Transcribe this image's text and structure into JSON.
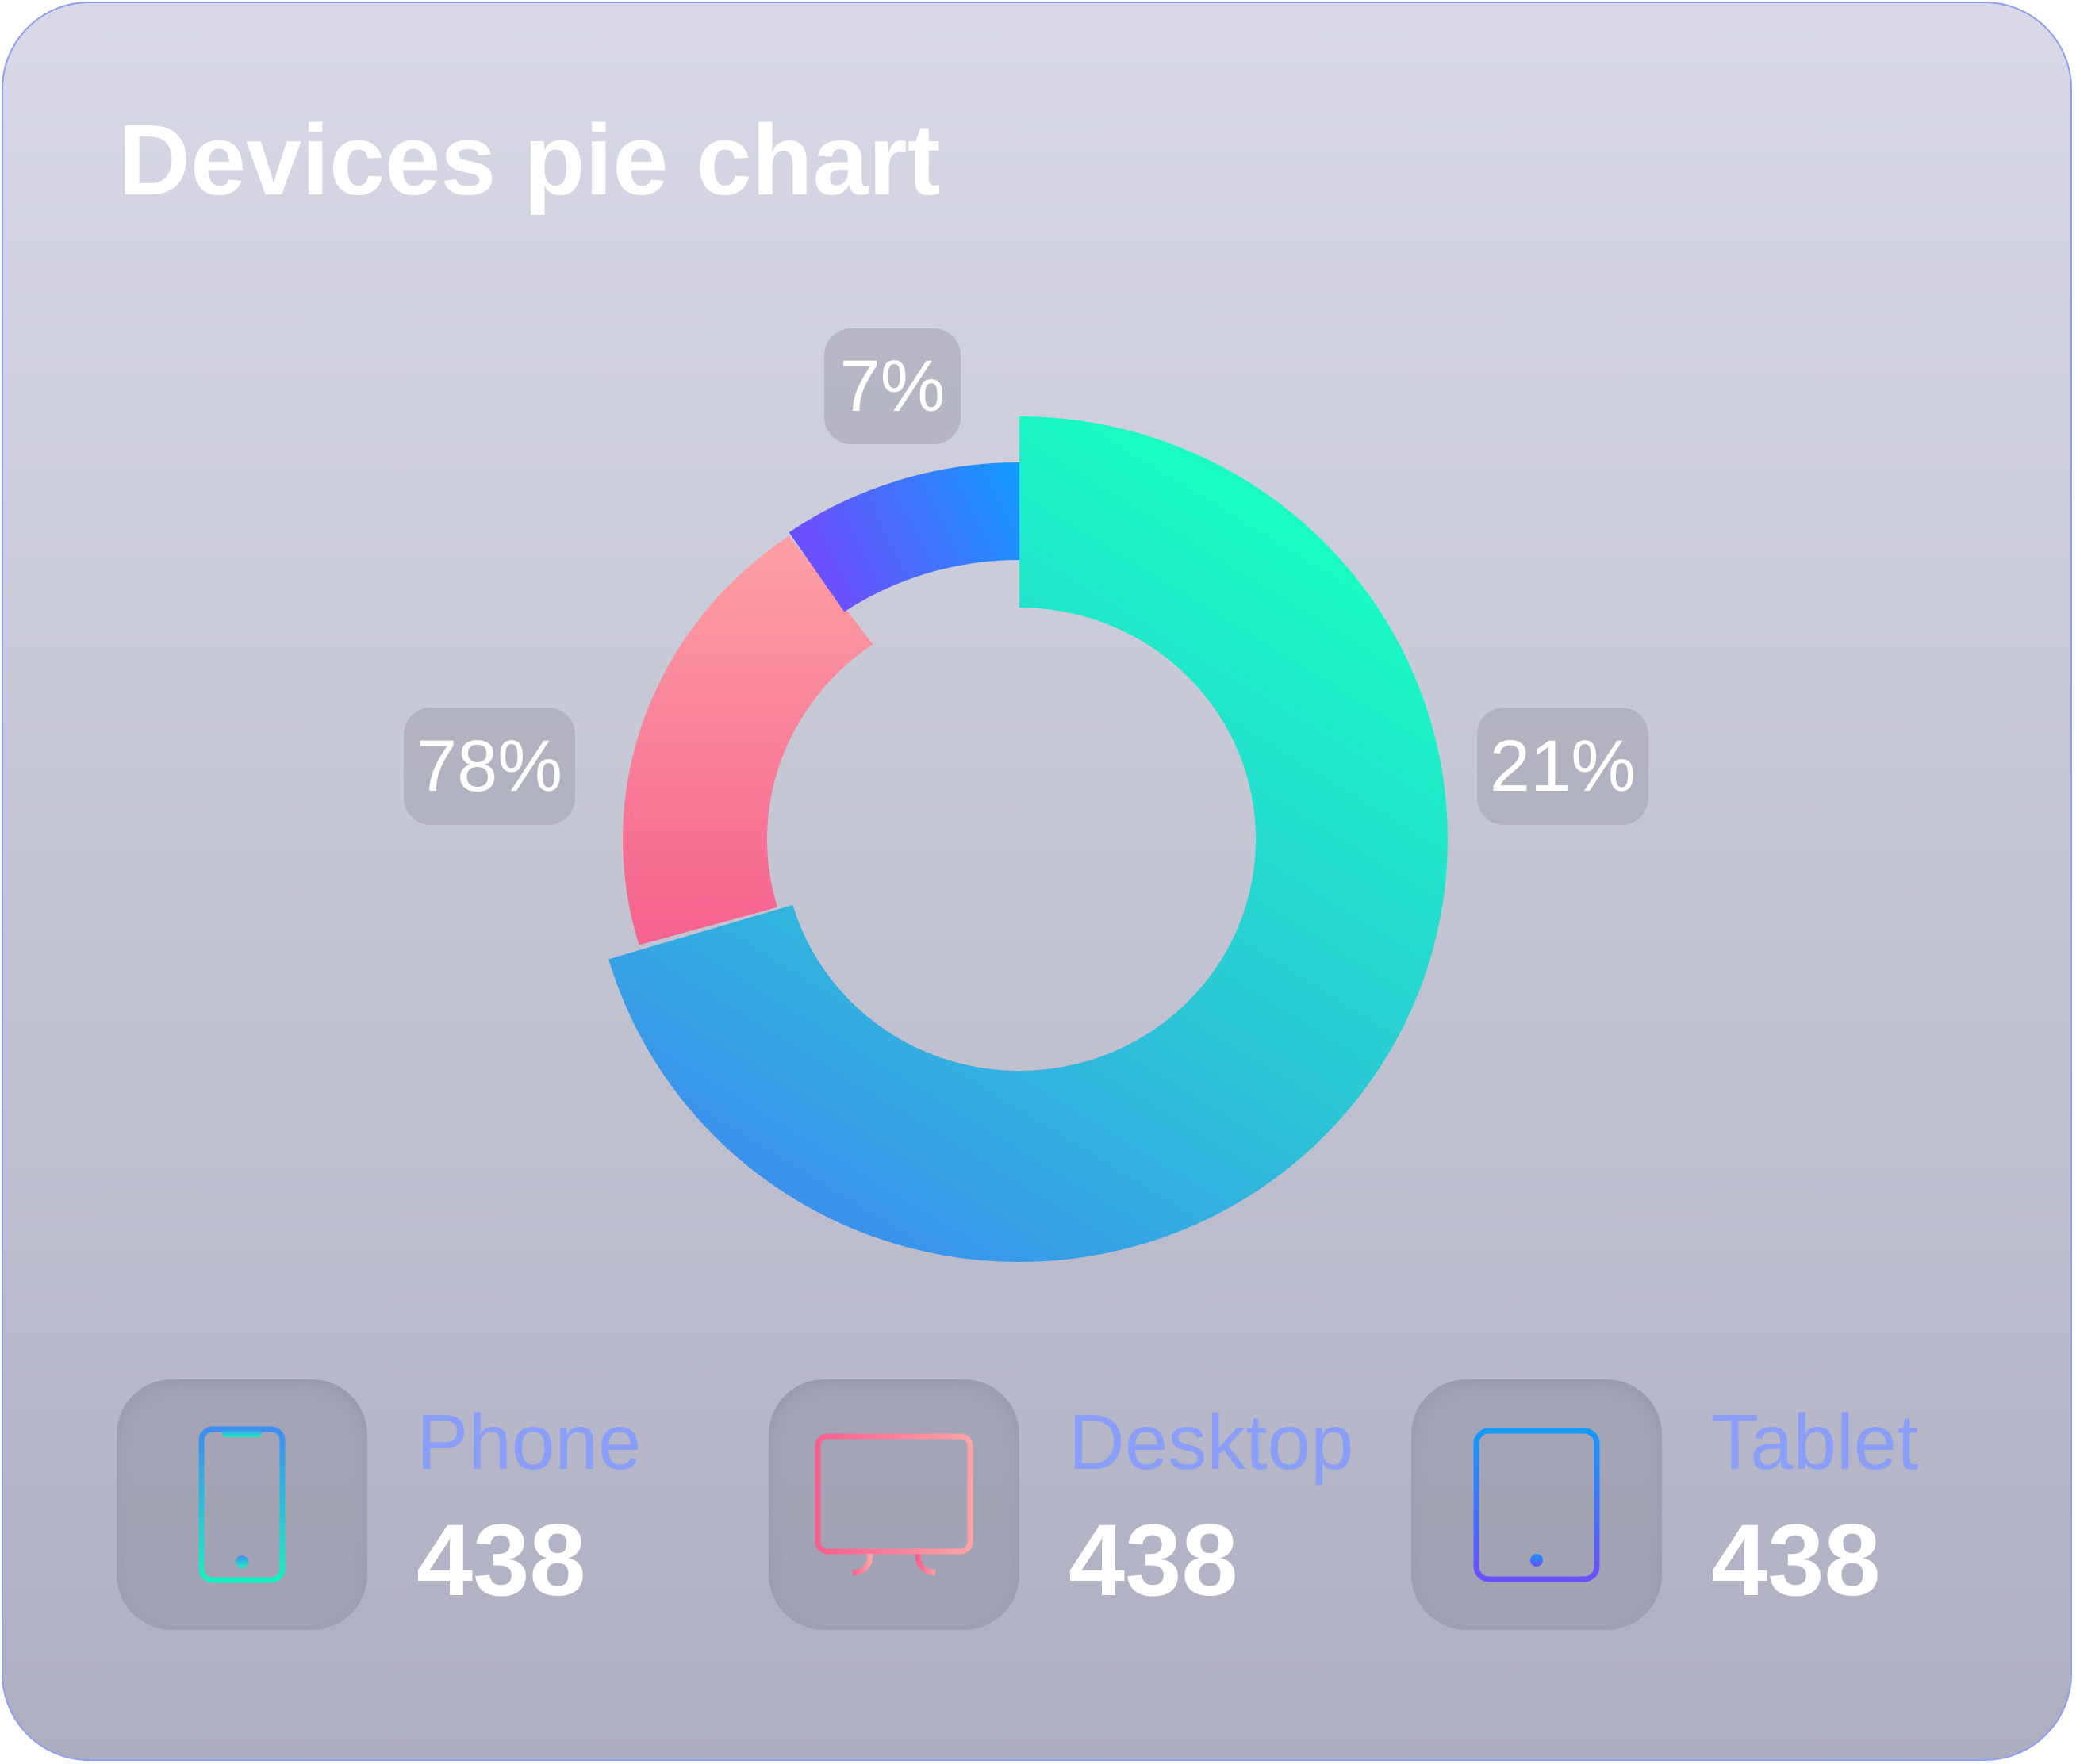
{
  "card": {
    "title": "Devices pie chart"
  },
  "chart_data": {
    "type": "pie",
    "title": "Devices pie chart",
    "donut": true,
    "categories": [
      "Phone",
      "Desktop",
      "Tablet"
    ],
    "values": [
      78,
      21,
      7
    ],
    "labels": [
      "78%",
      "21%",
      "7%"
    ]
  },
  "legend": [
    {
      "name": "Phone",
      "count": "438",
      "icon": "phone-icon"
    },
    {
      "name": "Desktop",
      "count": "438",
      "icon": "desktop-icon"
    },
    {
      "name": "Tablet",
      "count": "438",
      "icon": "tablet-icon"
    }
  ],
  "colors": {
    "teal": "#18ffc1",
    "blue": "#3b8bee",
    "pink": "#f5608e",
    "pink_light": "#fda3a6",
    "purple": "#6b50fd",
    "sky": "#1499fe",
    "accent_text": "#8a9ef7"
  }
}
